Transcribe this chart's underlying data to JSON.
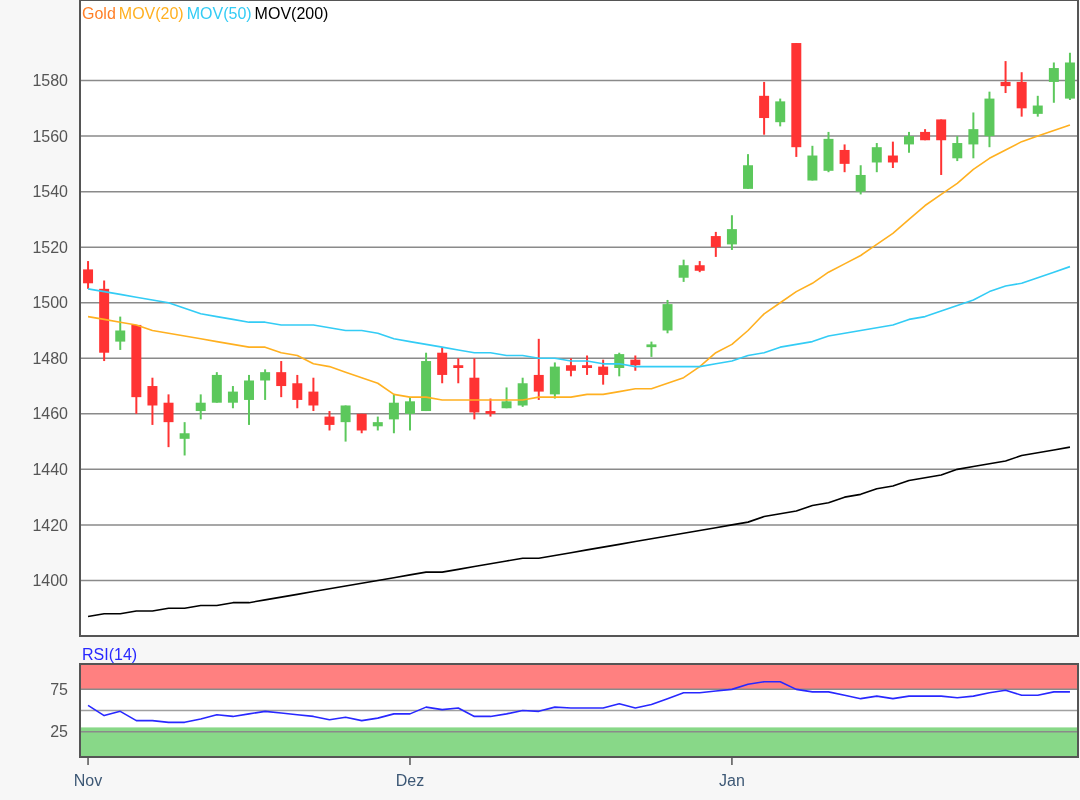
{
  "chart_data": [
    {
      "type": "candlestick",
      "categories": [
        null,
        null,
        null,
        null,
        null,
        null,
        null,
        null,
        null,
        null,
        null,
        null,
        null,
        null,
        null,
        null,
        null,
        null,
        null,
        null,
        null,
        null,
        null,
        null,
        null,
        null,
        null,
        null,
        null,
        null,
        null,
        null,
        null,
        null,
        null,
        null,
        null,
        null,
        null,
        null,
        null,
        null,
        null,
        null,
        null,
        null,
        null,
        null,
        null,
        null,
        null,
        null,
        null,
        null,
        null,
        null,
        null,
        null,
        null,
        null,
        null,
        null
      ],
      "series": [
        {
          "name": "MOV(20)",
          "type": "line",
          "color": "#ffb020",
          "values": [
            1495,
            1494,
            1493,
            1492,
            1490,
            1489,
            1488,
            1487,
            1486,
            1485,
            1484,
            1484,
            1482,
            1481,
            1478,
            1477,
            1475,
            1473,
            1471,
            1467,
            1466,
            1466,
            1465,
            1465,
            1465,
            1465,
            1465,
            1465,
            1466,
            1466,
            1466,
            1467,
            1467,
            1468,
            1469,
            1469,
            1471,
            1473,
            1477,
            1482,
            1485,
            1490,
            1496,
            1500,
            1504,
            1507,
            1511,
            1514,
            1517,
            1521,
            1525,
            1530,
            1535,
            1539,
            1543,
            1548,
            1552,
            1555,
            1558,
            1560,
            1562,
            1564
          ]
        },
        {
          "name": "MOV(50)",
          "type": "line",
          "color": "#33ccf5",
          "values": [
            1505,
            1504,
            1503,
            1502,
            1501,
            1500,
            1498,
            1496,
            1495,
            1494,
            1493,
            1493,
            1492,
            1492,
            1492,
            1491,
            1490,
            1490,
            1489,
            1487,
            1486,
            1485,
            1484,
            1483,
            1482,
            1482,
            1481,
            1481,
            1480,
            1480,
            1479,
            1479,
            1478,
            1478,
            1477,
            1477,
            1477,
            1477,
            1477,
            1478,
            1479,
            1481,
            1482,
            1484,
            1485,
            1486,
            1488,
            1489,
            1490,
            1491,
            1492,
            1494,
            1495,
            1497,
            1499,
            1501,
            1504,
            1506,
            1507,
            1509,
            1511,
            1513
          ]
        },
        {
          "name": "MOV(200)",
          "type": "line",
          "color": "#000000",
          "values": [
            1387,
            1388,
            1388,
            1389,
            1389,
            1390,
            1390,
            1391,
            1391,
            1392,
            1392,
            1393,
            1394,
            1395,
            1396,
            1397,
            1398,
            1399,
            1400,
            1401,
            1402,
            1403,
            1403,
            1404,
            1405,
            1406,
            1407,
            1408,
            1408,
            1409,
            1410,
            1411,
            1412,
            1413,
            1414,
            1415,
            1416,
            1417,
            1418,
            1419,
            1420,
            1421,
            1423,
            1424,
            1425,
            1427,
            1428,
            1430,
            1431,
            1433,
            1434,
            1436,
            1437,
            1438,
            1440,
            1441,
            1442,
            1443,
            1445,
            1446,
            1447,
            1448
          ]
        }
      ],
      "legend_title": "Gold",
      "ohlc": [
        [
          1512,
          1515,
          1505,
          1507
        ],
        [
          1505,
          1508,
          1479,
          1482
        ],
        [
          1486,
          1495,
          1483,
          1490
        ],
        [
          1492,
          1492,
          1460,
          1466
        ],
        [
          1470,
          1473,
          1456,
          1463
        ],
        [
          1464,
          1467,
          1448,
          1457
        ],
        [
          1451,
          1457,
          1445,
          1453
        ],
        [
          1461,
          1467,
          1458,
          1464
        ],
        [
          1464,
          1475,
          1464,
          1474
        ],
        [
          1464,
          1470,
          1462,
          1468
        ],
        [
          1465,
          1474,
          1456,
          1472
        ],
        [
          1472,
          1476,
          1465,
          1475
        ],
        [
          1475,
          1479,
          1466,
          1470
        ],
        [
          1471,
          1474,
          1462,
          1465
        ],
        [
          1468,
          1473,
          1461,
          1463
        ],
        [
          1459,
          1461,
          1454,
          1456
        ],
        [
          1457,
          1463,
          1450,
          1463
        ],
        [
          1460,
          1460,
          1453,
          1454
        ],
        [
          1455.5,
          1459,
          1454,
          1457
        ],
        [
          1458,
          1467,
          1453,
          1464
        ],
        [
          1460,
          1466,
          1454,
          1464.5
        ],
        [
          1461,
          1482,
          1461,
          1479
        ],
        [
          1482,
          1484,
          1471,
          1474
        ],
        [
          1477.5,
          1480,
          1471,
          1476.5
        ],
        [
          1473,
          1480,
          1458,
          1460.5
        ],
        [
          1461,
          1465.5,
          1459,
          1460
        ],
        [
          1462,
          1469.5,
          1462,
          1464.5
        ],
        [
          1463,
          1473,
          1462.5,
          1471
        ],
        [
          1474,
          1487,
          1465,
          1468
        ],
        [
          1467,
          1478.5,
          1465.5,
          1477
        ],
        [
          1477.5,
          1480,
          1473.5,
          1475.5
        ],
        [
          1477.5,
          1481,
          1474,
          1476.5
        ],
        [
          1477,
          1479.5,
          1470.5,
          1474
        ],
        [
          1476.5,
          1482,
          1473.5,
          1481.5
        ],
        [
          1479.5,
          1481,
          1475.5,
          1477.5
        ],
        [
          1484,
          1486,
          1480.5,
          1485
        ],
        [
          1490,
          1501,
          1489,
          1499.5
        ],
        [
          1509,
          1515.5,
          1507.5,
          1513.5
        ],
        [
          1513.5,
          1515,
          1511,
          1511.5
        ],
        [
          1524,
          1525.5,
          1516.5,
          1520
        ],
        [
          1521,
          1531.5,
          1519,
          1526.5
        ],
        [
          1541,
          1553.5,
          1541,
          1549.5
        ],
        [
          1574.5,
          1579.5,
          1560.5,
          1566.5
        ],
        [
          1565,
          1573.5,
          1563.5,
          1572.5
        ],
        [
          1593.5,
          1593.5,
          1552.5,
          1556
        ],
        [
          1544,
          1556.5,
          1544,
          1553
        ],
        [
          1547.5,
          1561.5,
          1547,
          1559
        ],
        [
          1555,
          1557,
          1547,
          1550
        ],
        [
          1540,
          1549.5,
          1539,
          1546
        ],
        [
          1550.5,
          1557.5,
          1547,
          1556
        ],
        [
          1553,
          1558,
          1548.5,
          1550.5
        ],
        [
          1557,
          1561.5,
          1554,
          1560
        ],
        [
          1561.5,
          1562.5,
          1558.5,
          1558.5
        ],
        [
          1566,
          1566,
          1546,
          1558.5
        ],
        [
          1552,
          1560,
          1551,
          1557.5
        ],
        [
          1557,
          1568.5,
          1552,
          1562.5
        ],
        [
          1560,
          1576,
          1556,
          1573.5
        ],
        [
          1579.5,
          1587,
          1575.5,
          1578
        ],
        [
          1579.5,
          1583,
          1567,
          1570
        ],
        [
          1568,
          1574.5,
          1567,
          1571
        ],
        [
          1579.5,
          1586.5,
          1572,
          1584.5
        ],
        [
          1573.5,
          1590,
          1573,
          1586.5
        ]
      ],
      "colors": [
        "#ff3333",
        "#ff3333",
        "#5cc85c",
        "#ff3333",
        "#ff3333",
        "#ff3333",
        "#5cc85c",
        "#5cc85c",
        "#5cc85c",
        "#5cc85c",
        "#5cc85c",
        "#5cc85c",
        "#ff3333",
        "#ff3333",
        "#ff3333",
        "#ff3333",
        "#5cc85c",
        "#ff3333",
        "#5cc85c",
        "#5cc85c",
        "#5cc85c",
        "#5cc85c",
        "#ff3333",
        "#ff3333",
        "#ff3333",
        "#ff3333",
        "#5cc85c",
        "#5cc85c",
        "#ff3333",
        "#5cc85c",
        "#ff3333",
        "#ff3333",
        "#ff3333",
        "#5cc85c",
        "#ff3333",
        "#5cc85c",
        "#5cc85c",
        "#5cc85c",
        "#ff3333",
        "#ff3333",
        "#5cc85c",
        "#5cc85c",
        "#ff3333",
        "#5cc85c",
        "#ff3333",
        "#5cc85c",
        "#5cc85c",
        "#ff3333",
        "#5cc85c",
        "#5cc85c",
        "#ff3333",
        "#5cc85c",
        "#ff3333",
        "#ff3333",
        "#5cc85c",
        "#5cc85c",
        "#5cc85c",
        "#ff3333",
        "#ff3333",
        "#5cc85c",
        "#5cc85c",
        "#5cc85c"
      ],
      "ylim": [
        1380,
        1609
      ],
      "yticks": [
        1400,
        1420,
        1440,
        1460,
        1480,
        1500,
        1520,
        1540,
        1560,
        1580
      ],
      "grid": "y",
      "legend": "top left",
      "tick_labels": "y"
    },
    {
      "type": "line",
      "categories": [
        "Nov",
        null,
        null,
        null,
        null,
        null,
        null,
        null,
        null,
        null,
        null,
        null,
        null,
        null,
        null,
        null,
        null,
        null,
        null,
        null,
        "Dez",
        null,
        null,
        null,
        null,
        null,
        null,
        null,
        null,
        null,
        null,
        null,
        null,
        null,
        null,
        null,
        null,
        null,
        null,
        null,
        "Jan",
        null,
        null,
        null,
        null,
        null,
        null,
        null,
        null,
        null,
        null,
        null,
        null,
        null,
        null,
        null,
        null,
        null,
        null,
        null,
        null,
        null
      ],
      "series": [
        {
          "name": "RSI(14)",
          "color": "#2828ff",
          "values": [
            56,
            44,
            49,
            38,
            38,
            36,
            36,
            40,
            45,
            43,
            46,
            49,
            47,
            45,
            43,
            39,
            42,
            38,
            41,
            46,
            46,
            54,
            51,
            53,
            43,
            43,
            46,
            50,
            49,
            54,
            53,
            53,
            53,
            58,
            53,
            57,
            64,
            71,
            71,
            73,
            75,
            81,
            84,
            84,
            75,
            72,
            72,
            68,
            64,
            67,
            64,
            67,
            67,
            67,
            65,
            67,
            71,
            74,
            68,
            68,
            72,
            72
          ]
        }
      ],
      "ylim": [
        -5,
        105
      ],
      "yticks": [
        25,
        75
      ],
      "grid": "y",
      "legend": "top left",
      "bands": [
        {
          "axis": "y",
          "from": 75,
          "to": 105,
          "color": "#ff8080"
        },
        {
          "axis": "y",
          "from": -5,
          "to": 30,
          "color": "#88d888"
        }
      ],
      "ref_lines": [
        {
          "axis": "y",
          "value": 50,
          "color": "#a0a0a0"
        }
      ]
    }
  ]
}
